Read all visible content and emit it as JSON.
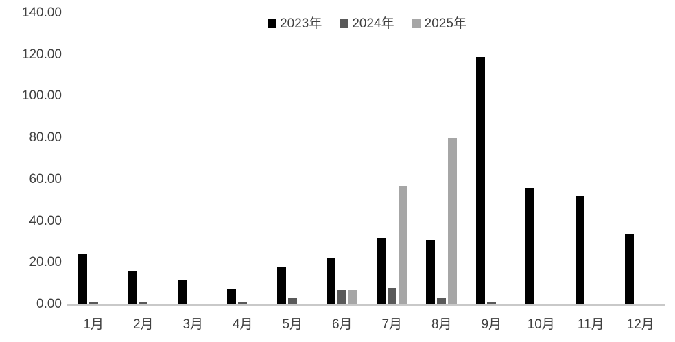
{
  "chart_data": {
    "type": "bar",
    "title": "",
    "xlabel": "",
    "ylabel": "",
    "categories": [
      "1月",
      "2月",
      "3月",
      "4月",
      "5月",
      "6月",
      "7月",
      "8月",
      "9月",
      "10月",
      "11月",
      "12月"
    ],
    "series": [
      {
        "name": "2023年",
        "color": "#000000",
        "values": [
          24,
          16,
          12,
          7.5,
          18,
          22,
          32,
          31,
          119,
          56,
          52,
          34
        ]
      },
      {
        "name": "2024年",
        "color": "#595959",
        "values": [
          1,
          1,
          0,
          1,
          3,
          7,
          8,
          3,
          1,
          0,
          0,
          0
        ]
      },
      {
        "name": "2025年",
        "color": "#a6a6a6",
        "values": [
          0,
          0,
          0,
          0,
          0,
          7,
          57,
          80,
          0,
          0,
          0,
          0
        ]
      }
    ],
    "ylim": [
      0,
      140
    ],
    "y_tick_step": 20,
    "y_ticks": [
      "0.00",
      "20.00",
      "40.00",
      "60.00",
      "80.00",
      "100.00",
      "120.00",
      "140.00"
    ],
    "grid": false,
    "legend_position": "top-center",
    "colors": {
      "axis_line": "#c9c9c9",
      "text": "#404040",
      "background": "#ffffff"
    }
  }
}
